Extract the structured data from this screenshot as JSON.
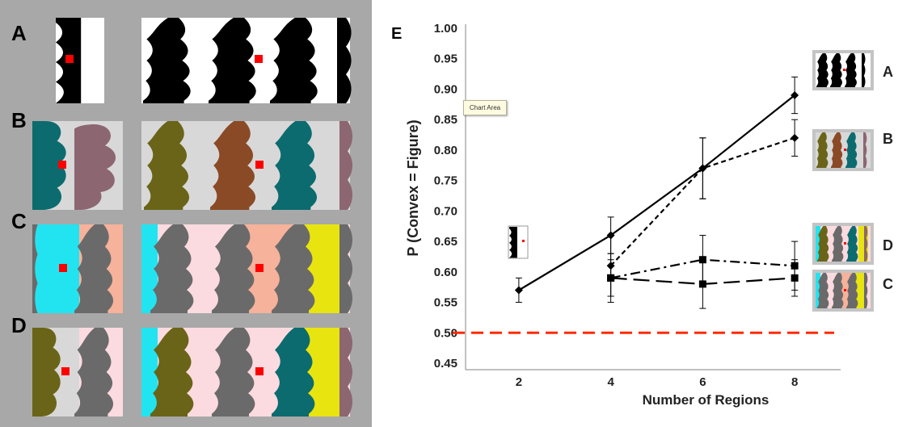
{
  "panel_letters": [
    "A",
    "B",
    "C",
    "D"
  ],
  "colors": {
    "gray_bg": "#a8a8a8",
    "black": "#000000",
    "light_gray": "#d8d8d8",
    "teal": "#0c6b6e",
    "mauve": "#8c6670",
    "olive": "#6a6418",
    "brown": "#8a4a25",
    "cyan": "#22e4f0",
    "peach": "#f6b29a",
    "dark_gray": "#6a6a6a",
    "pink": "#fbdbe0",
    "yellow": "#e8e410",
    "red_marker": "#ff0000",
    "threshold_line": "#ff2a00"
  },
  "tooltip": "Chart Area",
  "chart_data": {
    "type": "line",
    "panel_label": "E",
    "xlabel": "Number of Regions",
    "ylabel": "P (Convex = Figure)",
    "x": [
      2,
      4,
      6,
      8
    ],
    "ylim": [
      0.45,
      1.0
    ],
    "yticks": [
      "0.45",
      "0.50",
      "0.55",
      "0.60",
      "0.65",
      "0.70",
      "0.75",
      "0.80",
      "0.85",
      "0.90",
      "0.95",
      "1.00"
    ],
    "xticks": [
      "2",
      "4",
      "6",
      "8"
    ],
    "grid": false,
    "reference_line": 0.5,
    "series": [
      {
        "name": "A",
        "style": "solid",
        "marker": "diamond",
        "points": [
          [
            2,
            0.57
          ],
          [
            4,
            0.66
          ],
          [
            6,
            0.77
          ],
          [
            8,
            0.89
          ]
        ],
        "err": [
          0.02,
          0.03,
          0.05,
          0.03
        ]
      },
      {
        "name": "B",
        "style": "dashed",
        "marker": "diamond",
        "points": [
          [
            4,
            0.61
          ],
          [
            6,
            0.77
          ],
          [
            8,
            0.82
          ]
        ],
        "err": [
          0.05,
          0.05,
          0.03
        ]
      },
      {
        "name": "D",
        "style": "dashdot",
        "marker": "square",
        "points": [
          [
            4,
            0.59
          ],
          [
            6,
            0.62
          ],
          [
            8,
            0.61
          ]
        ],
        "err": [
          0.03,
          0.04,
          0.04
        ]
      },
      {
        "name": "C",
        "style": "longdash",
        "marker": "square",
        "points": [
          [
            4,
            0.59
          ],
          [
            6,
            0.58
          ],
          [
            8,
            0.59
          ]
        ],
        "err": [
          0.04,
          0.04,
          0.03
        ]
      }
    ]
  }
}
